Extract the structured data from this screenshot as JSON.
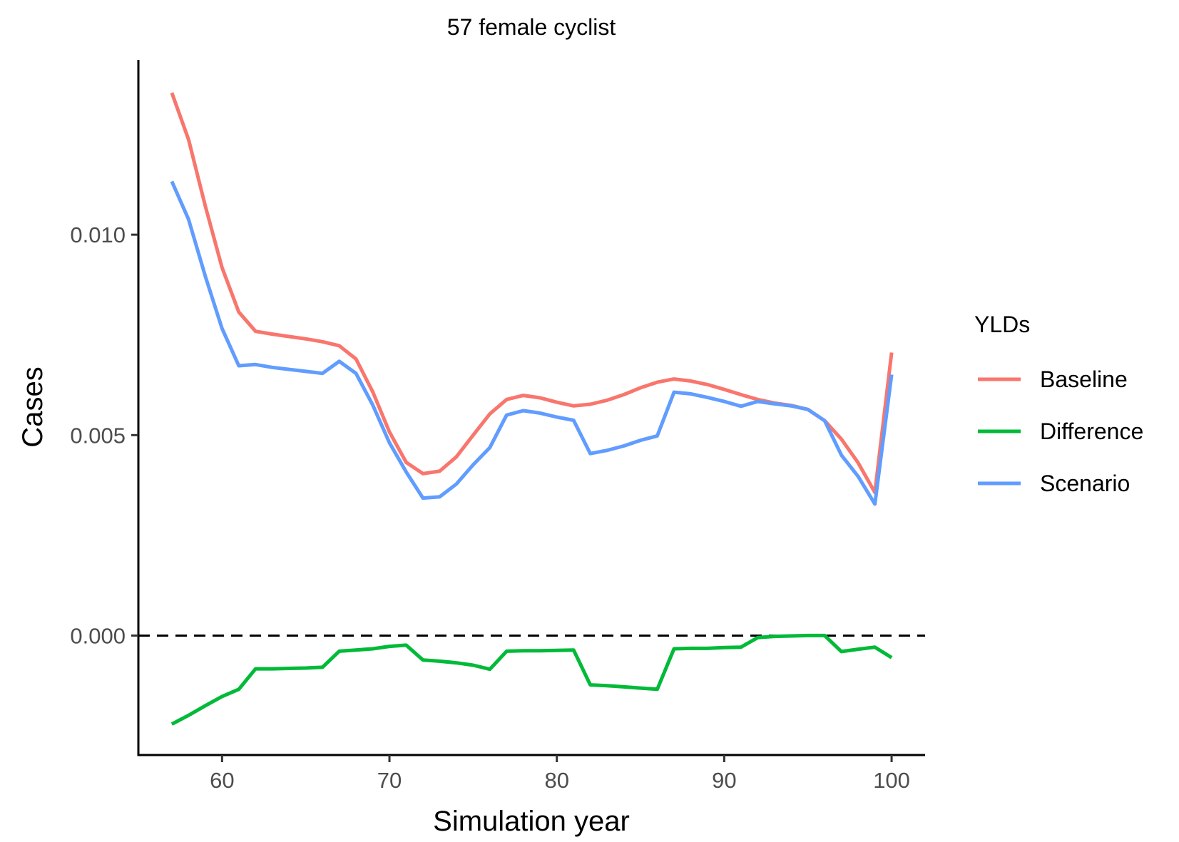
{
  "chart_data": {
    "type": "line",
    "title": "57 female cyclist",
    "xlabel": "Simulation year",
    "ylabel": "Cases",
    "xlim": [
      55,
      102
    ],
    "ylim": [
      -0.00298,
      0.01436
    ],
    "x_ticks": [
      60,
      70,
      80,
      90,
      100
    ],
    "x_tick_labels": [
      "60",
      "70",
      "80",
      "90",
      "100"
    ],
    "y_ticks": [
      0.0,
      0.005,
      0.01
    ],
    "y_tick_labels": [
      "0.000",
      "0.005",
      "0.010"
    ],
    "reference_line": {
      "y": 0.0,
      "style": "dashed",
      "color": "#000000"
    },
    "grid": false,
    "legend": {
      "title": "YLDs",
      "placement": "right",
      "entries": [
        "Baseline",
        "Difference",
        "Scenario"
      ]
    },
    "x": [
      57,
      58,
      59,
      60,
      61,
      62,
      63,
      64,
      65,
      66,
      67,
      68,
      69,
      70,
      71,
      72,
      73,
      74,
      75,
      76,
      77,
      78,
      79,
      80,
      81,
      82,
      83,
      84,
      85,
      86,
      87,
      88,
      89,
      90,
      91,
      92,
      93,
      94,
      95,
      96,
      97,
      98,
      99,
      100
    ],
    "series": [
      {
        "name": "Baseline",
        "color": "#f8766d",
        "values": [
          0.01354,
          0.01237,
          0.01071,
          0.00918,
          0.00807,
          0.00759,
          0.00752,
          0.00746,
          0.0074,
          0.00733,
          0.00723,
          0.0069,
          0.00608,
          0.00508,
          0.00432,
          0.00404,
          0.0041,
          0.00446,
          0.005,
          0.00553,
          0.00589,
          0.00599,
          0.00593,
          0.00582,
          0.00573,
          0.00577,
          0.00587,
          0.00601,
          0.00618,
          0.00632,
          0.0064,
          0.00635,
          0.00626,
          0.00614,
          0.00601,
          0.00589,
          0.0058,
          0.00574,
          0.00564,
          0.00536,
          0.0049,
          0.00431,
          0.00357,
          0.00706
        ]
      },
      {
        "name": "Difference",
        "color": "#00ba38",
        "values": [
          -0.00221,
          -0.00199,
          -0.00175,
          -0.00152,
          -0.00134,
          -0.00083,
          -0.00083,
          -0.00082,
          -0.00081,
          -0.00079,
          -0.00039,
          -0.00036,
          -0.00033,
          -0.00027,
          -0.00024,
          -0.00061,
          -0.00064,
          -0.00068,
          -0.00074,
          -0.00084,
          -0.00039,
          -0.00038,
          -0.00038,
          -0.00037,
          -0.00036,
          -0.00123,
          -0.00125,
          -0.00128,
          -0.00131,
          -0.00134,
          -0.00033,
          -0.00032,
          -0.00032,
          -0.0003,
          -0.00029,
          -5e-05,
          -2e-05,
          -1e-05,
          0.0,
          0.0,
          -0.0004,
          -0.00034,
          -0.00029,
          -0.00055
        ]
      },
      {
        "name": "Scenario",
        "color": "#619cff",
        "values": [
          0.01133,
          0.01038,
          0.00896,
          0.00766,
          0.00673,
          0.00676,
          0.00669,
          0.00664,
          0.00659,
          0.00654,
          0.00684,
          0.00654,
          0.00575,
          0.00481,
          0.00408,
          0.00343,
          0.00346,
          0.00378,
          0.00426,
          0.00469,
          0.0055,
          0.00561,
          0.00555,
          0.00545,
          0.00537,
          0.00454,
          0.00462,
          0.00473,
          0.00487,
          0.00498,
          0.00607,
          0.00603,
          0.00594,
          0.00584,
          0.00572,
          0.00584,
          0.00578,
          0.00573,
          0.00564,
          0.00536,
          0.0045,
          0.00397,
          0.00328,
          0.00651
        ]
      }
    ]
  }
}
